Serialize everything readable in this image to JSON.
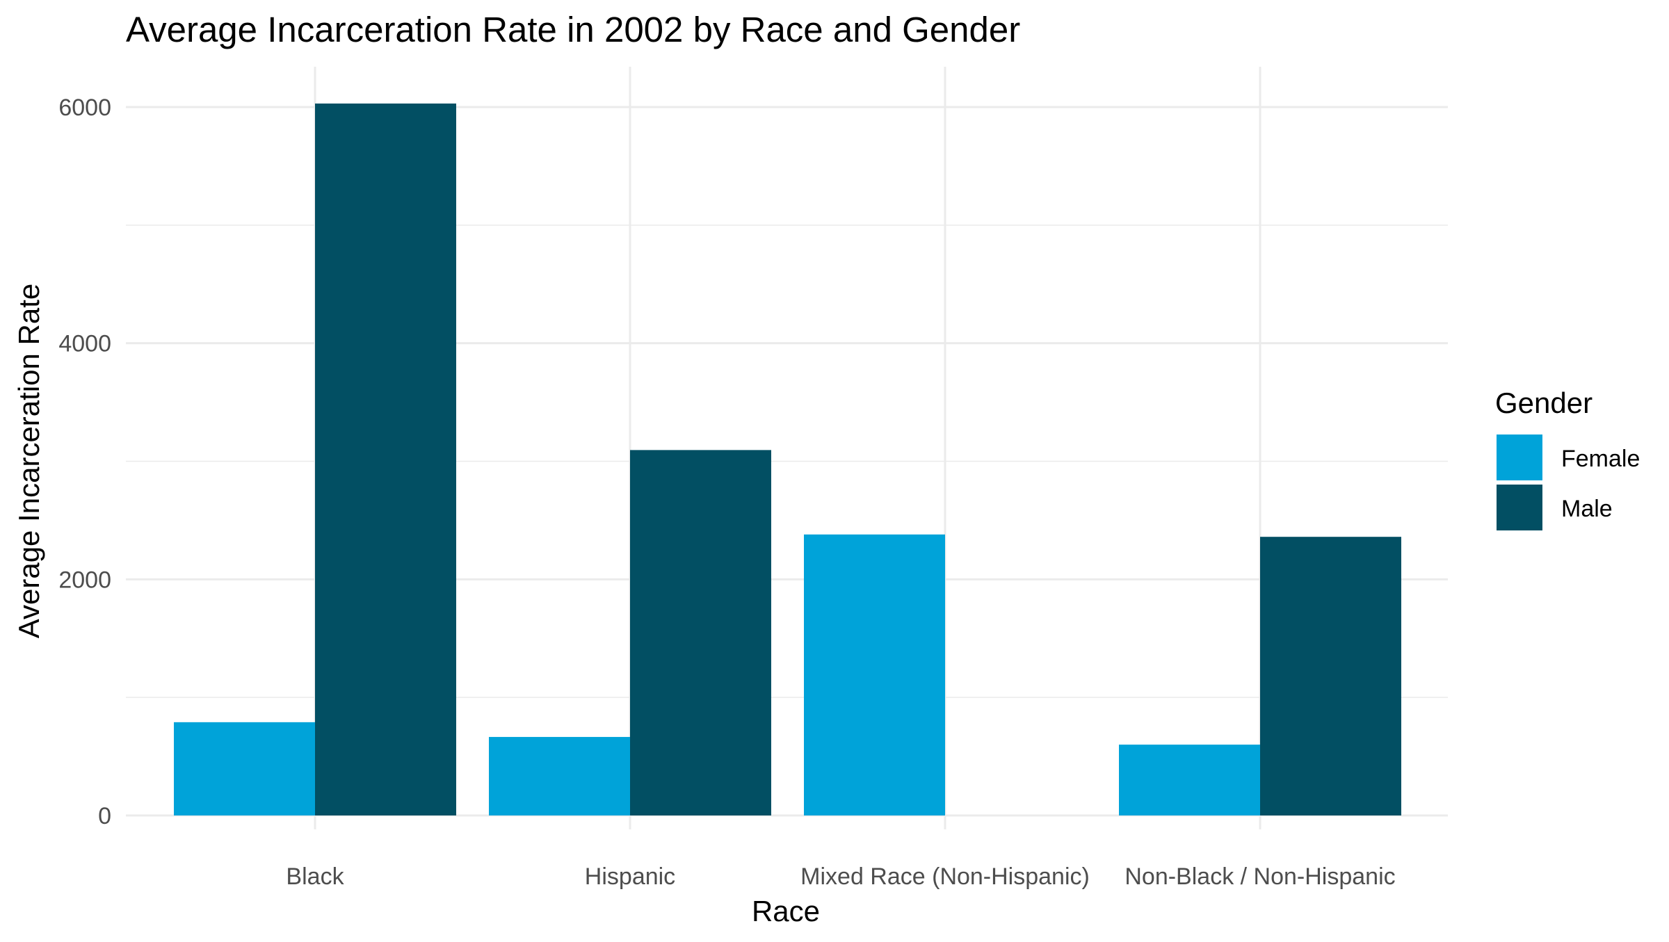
{
  "chart_data": {
    "type": "bar",
    "title": "Average Incarceration Rate in 2002 by Race and Gender",
    "xlabel": "Race",
    "ylabel": "Average Incarceration Rate",
    "categories": [
      "Black",
      "Hispanic",
      "Mixed Race (Non-Hispanic)",
      "Non-Black / Non-Hispanic"
    ],
    "series": [
      {
        "name": "Female",
        "color": "#00A3D9",
        "values": [
          790,
          665,
          2380,
          600
        ]
      },
      {
        "name": "Male",
        "color": "#024F63",
        "values": [
          6030,
          3095,
          null,
          2360
        ]
      }
    ],
    "ylim": [
      0,
      6200
    ],
    "yticks": [
      0,
      2000,
      4000,
      6000
    ],
    "yticks_minor": [
      1000,
      3000,
      5000
    ],
    "grid": true,
    "legend": {
      "title": "Gender",
      "position": "right"
    },
    "colors": {
      "grid": "#EBEBEB",
      "text": "#000000",
      "tick_text": "#4D4D4D"
    }
  }
}
